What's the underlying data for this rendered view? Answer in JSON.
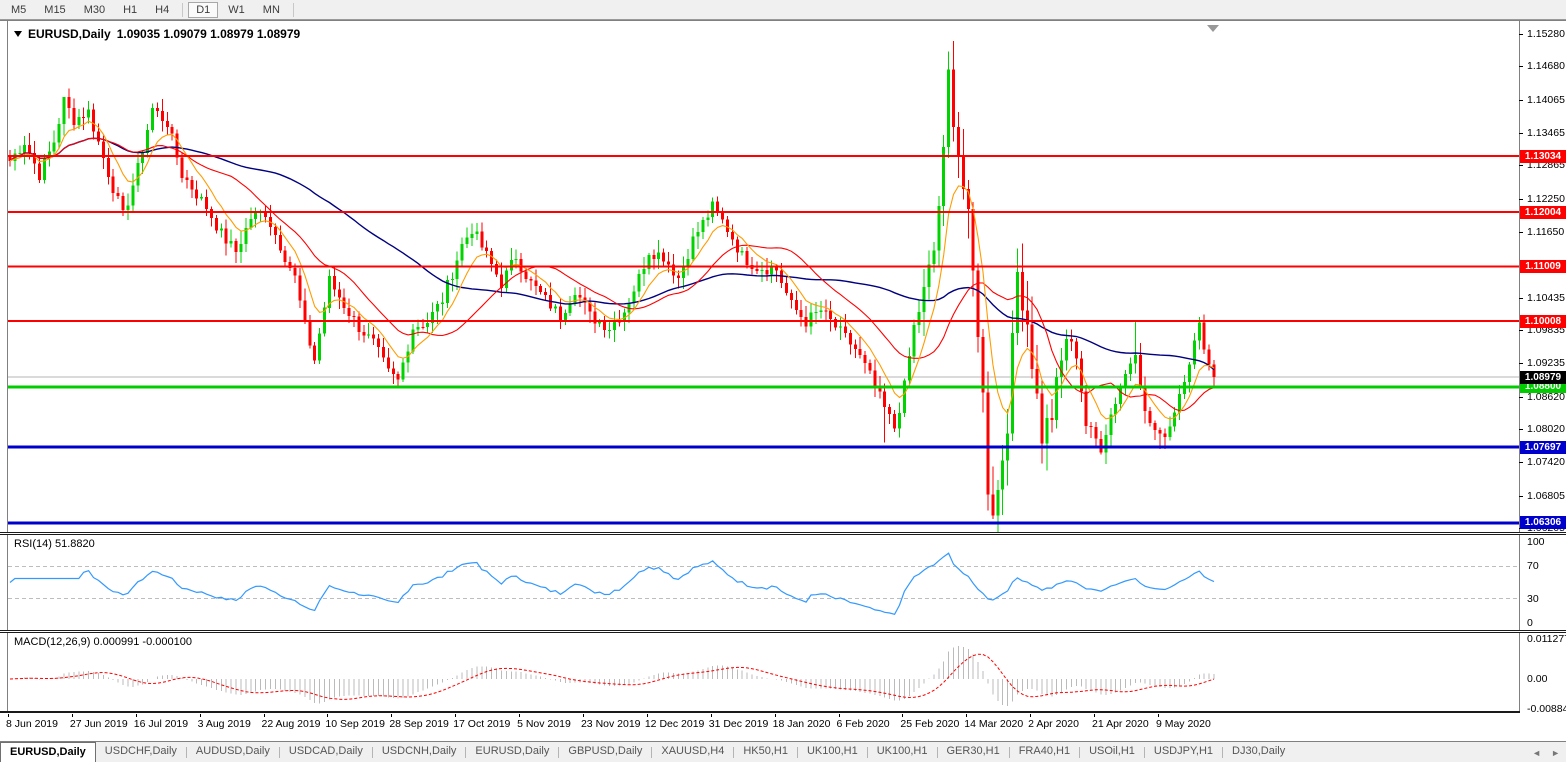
{
  "toolbar": {
    "timeframes": [
      "M5",
      "M15",
      "M30",
      "H1",
      "H4",
      "D1",
      "W1",
      "MN"
    ],
    "active": "D1"
  },
  "chart": {
    "symbol_label": "EURUSD,Daily",
    "ohlc_text": "1.09035 1.09079 1.08979 1.08979",
    "price_axis_ticks": [
      "1.15280",
      "1.14680",
      "1.14065",
      "1.13465",
      "1.12865",
      "1.12250",
      "1.11650",
      "1.10435",
      "1.09835",
      "1.09235",
      "1.08620",
      "1.08020",
      "1.07420",
      "1.06805",
      "1.06205"
    ]
  },
  "chart_data": {
    "type": "candlestick",
    "title": "EURUSD,Daily",
    "n_candles": 246,
    "price_range_top": 1.1551,
    "price_range_bottom": 1.0614,
    "x_axis_dates": [
      "8 Jun 2019",
      "27 Jun 2019",
      "16 Jul 2019",
      "3 Aug 2019",
      "22 Aug 2019",
      "10 Sep 2019",
      "28 Sep 2019",
      "17 Oct 2019",
      "5 Nov 2019",
      "23 Nov 2019",
      "12 Dec 2019",
      "31 Dec 2019",
      "18 Jan 2020",
      "6 Feb 2020",
      "25 Feb 2020",
      "14 Mar 2020",
      "2 Apr 2020",
      "21 Apr 2020",
      "9 May 2020"
    ],
    "x_tick_candle_indices": [
      0,
      13,
      26,
      39,
      52,
      65,
      78,
      91,
      104,
      117,
      130,
      143,
      156,
      169,
      182,
      195,
      208,
      221,
      234
    ],
    "close_anchors": [
      [
        0,
        1.1295
      ],
      [
        3,
        1.133
      ],
      [
        6,
        1.127
      ],
      [
        9,
        1.133
      ],
      [
        11,
        1.1405
      ],
      [
        13,
        1.137
      ],
      [
        16,
        1.1385
      ],
      [
        19,
        1.13
      ],
      [
        23,
        1.1193
      ],
      [
        26,
        1.128
      ],
      [
        29,
        1.139
      ],
      [
        32,
        1.1365
      ],
      [
        35,
        1.127
      ],
      [
        40,
        1.121
      ],
      [
        43,
        1.116
      ],
      [
        46,
        1.1128
      ],
      [
        49,
        1.119
      ],
      [
        52,
        1.12
      ],
      [
        55,
        1.114
      ],
      [
        58,
        1.108
      ],
      [
        60,
        1.099
      ],
      [
        62,
        1.093
      ],
      [
        65,
        1.1075
      ],
      [
        68,
        1.103
      ],
      [
        71,
        1.099
      ],
      [
        74,
        1.096
      ],
      [
        77,
        1.0905
      ],
      [
        79,
        1.089
      ],
      [
        82,
        1.099
      ],
      [
        85,
        1.1
      ],
      [
        88,
        1.104
      ],
      [
        92,
        1.114
      ],
      [
        94,
        1.117
      ],
      [
        97,
        1.112
      ],
      [
        100,
        1.107
      ],
      [
        103,
        1.112
      ],
      [
        106,
        1.107
      ],
      [
        109,
        1.104
      ],
      [
        112,
        1.101
      ],
      [
        115,
        1.106
      ],
      [
        118,
        1.101
      ],
      [
        122,
        1.099
      ],
      [
        125,
        1.102
      ],
      [
        128,
        1.108
      ],
      [
        130,
        1.113
      ],
      [
        133,
        1.112
      ],
      [
        136,
        1.108
      ],
      [
        139,
        1.115
      ],
      [
        143,
        1.121
      ],
      [
        146,
        1.117
      ],
      [
        149,
        1.112
      ],
      [
        152,
        1.11
      ],
      [
        156,
        1.1095
      ],
      [
        159,
        1.103
      ],
      [
        162,
        1.1
      ],
      [
        165,
        1.102
      ],
      [
        169,
        1.098
      ],
      [
        172,
        1.095
      ],
      [
        175,
        1.09
      ],
      [
        178,
        1.084
      ],
      [
        180,
        1.0805
      ],
      [
        182,
        1.088
      ],
      [
        184,
        1.099
      ],
      [
        186,
        1.105
      ],
      [
        188,
        1.113
      ],
      [
        190,
        1.13
      ],
      [
        191,
        1.145
      ],
      [
        193,
        1.131
      ],
      [
        195,
        1.118
      ],
      [
        197,
        1.099
      ],
      [
        198,
        1.086
      ],
      [
        199,
        1.07
      ],
      [
        200,
        1.066
      ],
      [
        201,
        1.069
      ],
      [
        203,
        1.082
      ],
      [
        205,
        1.109
      ],
      [
        207,
        1.1
      ],
      [
        210,
        1.079
      ],
      [
        212,
        1.083
      ],
      [
        215,
        1.097
      ],
      [
        217,
        1.094
      ],
      [
        219,
        1.081
      ],
      [
        222,
        1.077
      ],
      [
        224,
        1.083
      ],
      [
        226,
        1.088
      ],
      [
        229,
        1.095
      ],
      [
        231,
        1.083
      ],
      [
        234,
        1.0785
      ],
      [
        236,
        1.081
      ],
      [
        238,
        1.087
      ],
      [
        240,
        1.093
      ],
      [
        242,
        1.099
      ],
      [
        243,
        1.096
      ],
      [
        244,
        1.092
      ],
      [
        245,
        1.0898
      ]
    ],
    "wick_overrides": [
      {
        "i": 11,
        "high": 1.1412
      },
      {
        "i": 178,
        "low": 1.0778
      },
      {
        "i": 191,
        "high": 1.1495
      },
      {
        "i": 200,
        "low": 1.0638
      },
      {
        "i": 222,
        "low": 1.0756
      },
      {
        "i": 229,
        "high": 1.1002
      },
      {
        "i": 234,
        "low": 1.0766
      },
      {
        "i": 242,
        "high": 1.1008
      }
    ],
    "bull_color": "#00D300",
    "bear_color": "#FF0000",
    "moving_averages": [
      {
        "period": 55,
        "method": "sma",
        "color": "#000080"
      },
      {
        "period": 21,
        "method": "sma",
        "color": "#FF0000"
      },
      {
        "period": 8,
        "method": "ema",
        "color": "#FF9C00"
      }
    ],
    "horizontal_lines": [
      {
        "price": 1.13034,
        "label": "1.13034",
        "color": "#FF0000",
        "width": 2
      },
      {
        "price": 1.12004,
        "label": "1.12004",
        "color": "#FF0000",
        "width": 2
      },
      {
        "price": 1.11009,
        "label": "1.11009",
        "color": "#FF0000",
        "width": 2
      },
      {
        "price": 1.10008,
        "label": "1.10008",
        "color": "#FF0000",
        "width": 2
      },
      {
        "price": 1.088,
        "label": "1.08800",
        "color": "#00CC00",
        "width": 3
      },
      {
        "price": 1.07697,
        "label": "1.07697",
        "color": "#0000CC",
        "width": 3
      },
      {
        "price": 1.06306,
        "label": "1.06306",
        "color": "#0000CC",
        "width": 3
      }
    ],
    "current_price": {
      "value": 1.08979,
      "label": "1.08979",
      "badge_color": "#000000",
      "line_color": "#b4b4b4"
    },
    "indicators": [
      {
        "name": "RSI",
        "period": 14,
        "value": 51.882
      },
      {
        "name": "MACD",
        "fast": 12,
        "slow": 26,
        "signal": 9,
        "value": 0.000991,
        "signal_value": -0.0001
      }
    ]
  },
  "rsi": {
    "label": "RSI(14) 51.8820",
    "levels": [
      "100",
      "70",
      "30",
      "0"
    ],
    "line_color": "#3399FF"
  },
  "macd": {
    "label": "MACD(12,26,9) 0.000991 -0.000100",
    "axis": [
      "0.011277",
      "0.00",
      "-0.008845"
    ],
    "histogram_color": "#bbbbbb",
    "signal_color": "#FF0000"
  },
  "tabs": {
    "items": [
      "EURUSD,Daily",
      "USDCHF,Daily",
      "AUDUSD,Daily",
      "USDCAD,Daily",
      "USDCNH,Daily",
      "EURUSD,Daily",
      "GBPUSD,Daily",
      "XAUUSD,H4",
      "HK50,H1",
      "UK100,H1",
      "UK100,H1",
      "GER30,H1",
      "FRA40,H1",
      "USOil,H1",
      "USDJPY,H1",
      "DJ30,Daily"
    ],
    "active_index": 0,
    "scroll_left_icon": "◄",
    "scroll_right_icon": "►"
  }
}
